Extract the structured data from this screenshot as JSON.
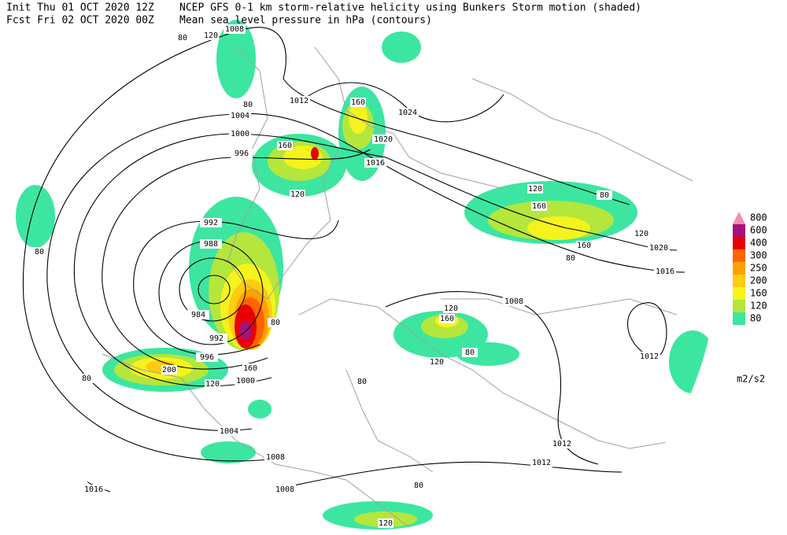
{
  "header": {
    "init": "Init  Thu 01 OCT 2020 12Z",
    "fcst": "Fcst Fri 02 OCT 2020 00Z",
    "title": "NCEP GFS 0-1 km storm-relative helicity using Bunkers Storm motion (shaded)",
    "subtitle": "Mean sea level pressure in hPa (contours)"
  },
  "legend": {
    "levels": [
      {
        "value": 800,
        "color": "#f08cb4"
      },
      {
        "value": 600,
        "color": "#a8107c"
      },
      {
        "value": 400,
        "color": "#e80000"
      },
      {
        "value": 300,
        "color": "#ff6400"
      },
      {
        "value": 250,
        "color": "#ffa000"
      },
      {
        "value": 200,
        "color": "#ffcc10"
      },
      {
        "value": 160,
        "color": "#f4f41c"
      },
      {
        "value": 120,
        "color": "#b4e63c"
      },
      {
        "value": 80,
        "color": "#3ce6a0"
      }
    ],
    "unit": "m2/s2"
  },
  "isobar_labels": [
    1008,
    1012,
    1024,
    1004,
    1000,
    996,
    1020,
    1016,
    992,
    988,
    984,
    992,
    996,
    1000,
    1004,
    1008,
    1016,
    1008,
    1012,
    1012,
    1012,
    1008,
    1020,
    1016
  ],
  "shade_labels": [
    120,
    80,
    80,
    160,
    160,
    120,
    80,
    120,
    160,
    80,
    120,
    160,
    80,
    160,
    120,
    80,
    120,
    200,
    160,
    120,
    80,
    120,
    80,
    80,
    80
  ]
}
